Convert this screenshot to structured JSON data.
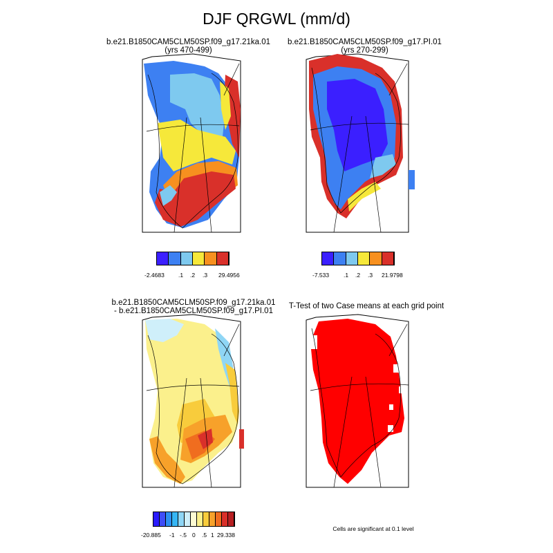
{
  "title": "DJF QRGWL (mm/d)",
  "panels": [
    {
      "title_line1": "b.e21.B1850CAM5CLM50SP.f09_g17.21ka.01",
      "title_line2": "(yrs 470-499)",
      "colorbar": {
        "colors": [
          "#3b1fff",
          "#3d80f2",
          "#7ec9ef",
          "#f6e83a",
          "#f7901f",
          "#d9302a"
        ],
        "labels": [
          "-2.4683",
          ".1",
          ".2",
          ".3",
          "29.4956"
        ]
      }
    },
    {
      "title_line1": "b.e21.B1850CAM5CLM50SP.f09_g17.PI.01",
      "title_line2": "(yrs 270-299)",
      "colorbar": {
        "colors": [
          "#3b1fff",
          "#3d80f2",
          "#7ec9ef",
          "#f6e83a",
          "#f7901f",
          "#d9302a"
        ],
        "labels": [
          "-7.533",
          ".1",
          ".2",
          ".3",
          "21.9798"
        ]
      }
    },
    {
      "title_line1": "b.e21.B1850CAM5CLM50SP.f09_g17.21ka.01",
      "title_line2": "- b.e21.B1850CAM5CLM50SP.f09_g17.PI.01",
      "colorbar": {
        "colors": [
          "#2a1bff",
          "#3e4df7",
          "#2d8ff2",
          "#36b6f4",
          "#8fd6f5",
          "#cfeffa",
          "#fdfbd3",
          "#fbf08c",
          "#f8cc3c",
          "#f7a12a",
          "#f06d1f",
          "#d9302a",
          "#b71f22"
        ],
        "labels": [
          "-20.885",
          "-1",
          "-.5",
          "0",
          ".5",
          "1",
          "29.338"
        ]
      }
    },
    {
      "title_line1": "T-Test of two Case means at each grid point",
      "note": "Cells are significant at 0.1 level"
    }
  ]
}
